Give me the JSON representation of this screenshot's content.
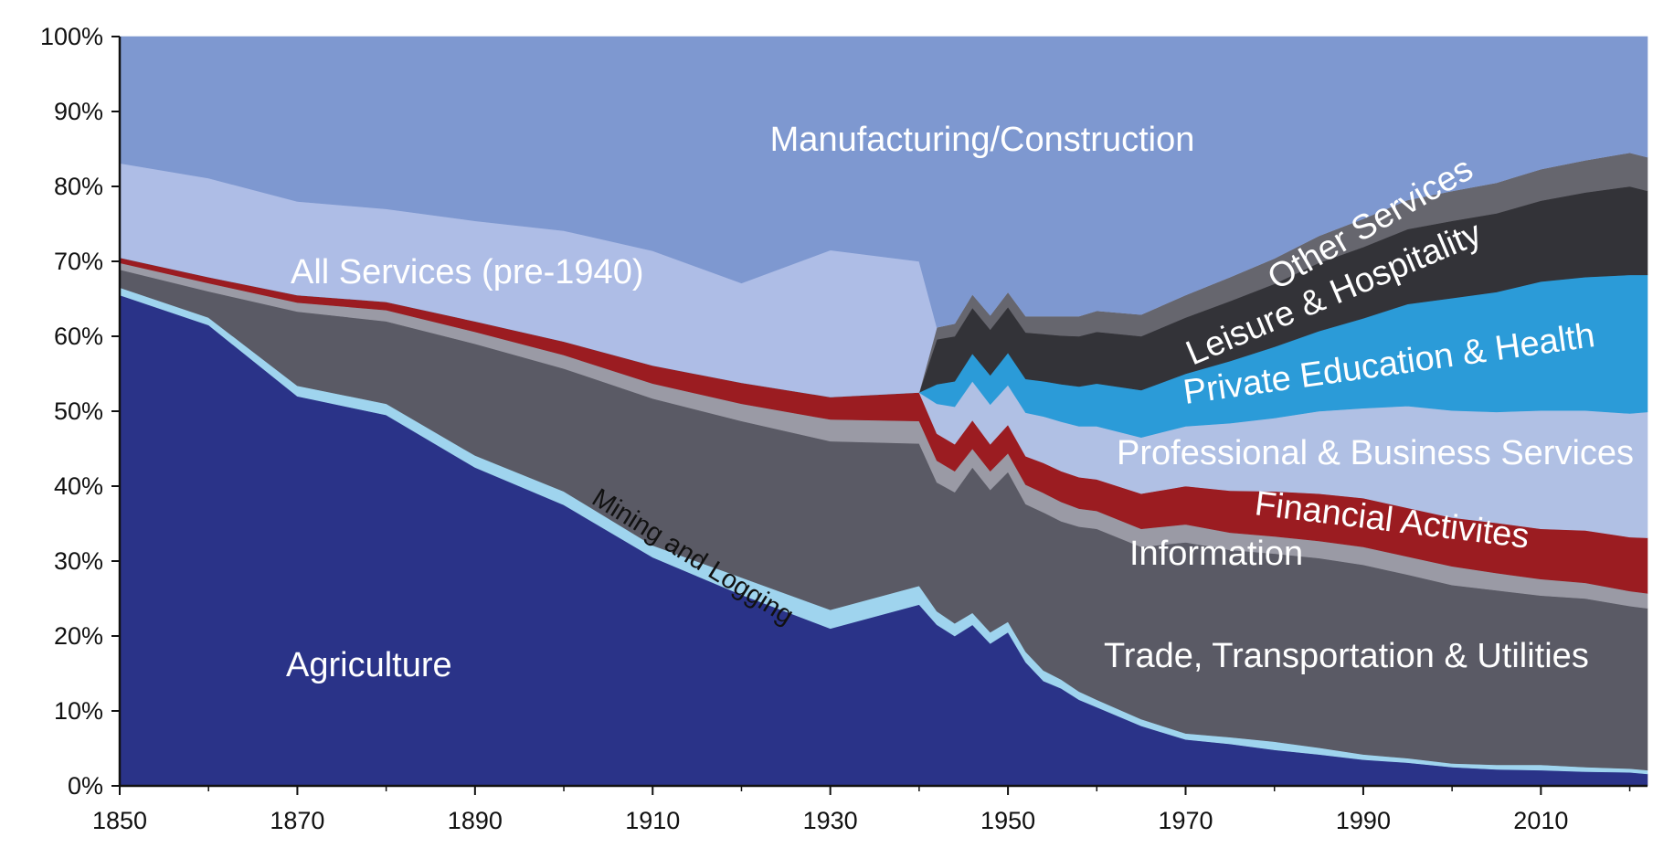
{
  "chart_data": {
    "type": "area",
    "stacked": true,
    "normalized": true,
    "title": "",
    "xlabel": "",
    "ylabel": "",
    "xlim": [
      1850,
      2022
    ],
    "ylim": [
      0,
      100
    ],
    "grid": false,
    "legend": "none",
    "x_ticks": [
      "1850",
      "1870",
      "1890",
      "1910",
      "1930",
      "1950",
      "1970",
      "1990",
      "2010"
    ],
    "y_ticks": [
      "0%",
      "10%",
      "20%",
      "30%",
      "40%",
      "50%",
      "60%",
      "70%",
      "80%",
      "90%",
      "100%"
    ],
    "x": [
      1850,
      1860,
      1870,
      1880,
      1890,
      1900,
      1910,
      1920,
      1930,
      1940,
      1942,
      1944,
      1946,
      1948,
      1950,
      1952,
      1954,
      1956,
      1958,
      1960,
      1965,
      1970,
      1975,
      1980,
      1985,
      1990,
      1995,
      2000,
      2005,
      2010,
      2015,
      2020,
      2022
    ],
    "series": [
      {
        "name": "Agriculture",
        "color": "#2a3388",
        "values": [
          65.5,
          61.5,
          52,
          49.5,
          42.5,
          37.5,
          30.5,
          25.5,
          21,
          24.2,
          21.5,
          20,
          21.5,
          19,
          20.5,
          16.5,
          14,
          13,
          11.5,
          10.5,
          8,
          6.2,
          5.6,
          4.8,
          4.2,
          3.5,
          3.1,
          2.5,
          2.2,
          2.1,
          1.9,
          1.8,
          1.6
        ]
      },
      {
        "name": "Mining and Logging",
        "color": "#9fd4ee",
        "values": [
          1,
          1,
          1.4,
          1.5,
          1.6,
          1.8,
          1.6,
          2.3,
          2.5,
          2.5,
          1.8,
          1.7,
          1.6,
          1.5,
          1.4,
          1.4,
          1.4,
          1.2,
          1.1,
          1,
          0.9,
          0.8,
          0.9,
          1.1,
          0.9,
          0.7,
          0.6,
          0.5,
          0.6,
          0.7,
          0.6,
          0.5,
          0.5
        ]
      },
      {
        "name": "Trade, Transportation & Utilities",
        "color": "#5a5a65",
        "values": [
          2.4,
          3.5,
          9.9,
          11,
          14.9,
          16.4,
          19.6,
          20.9,
          22.5,
          19,
          17.2,
          17.5,
          19.4,
          19,
          20,
          19.7,
          21.1,
          21.1,
          22,
          22.8,
          23,
          25.5,
          25,
          25.1,
          25.3,
          25.3,
          24.5,
          23.8,
          23.3,
          22.6,
          22.5,
          21.7,
          21.6
        ]
      },
      {
        "name": "Information",
        "color": "#9a9aa5",
        "values": [
          0.9,
          1.1,
          1.2,
          1.5,
          1.6,
          1.8,
          2,
          2.3,
          2.9,
          3,
          2.9,
          2.8,
          2.5,
          2.5,
          2.5,
          2.6,
          2.6,
          2.6,
          2.4,
          2.4,
          2.4,
          2.4,
          2.3,
          2.3,
          2.3,
          2.4,
          2.4,
          2.5,
          2.3,
          2.2,
          2.1,
          2,
          2
        ]
      },
      {
        "name": "Financial Activites",
        "color": "#9b1c21",
        "values": [
          0.7,
          0.8,
          1,
          1.1,
          1.4,
          1.8,
          2.4,
          2.8,
          3,
          3.8,
          3.6,
          3.6,
          3.8,
          3.6,
          3.8,
          3.8,
          4,
          4.1,
          4.2,
          4.2,
          4.7,
          5.1,
          5.6,
          6,
          6.3,
          6.5,
          6.5,
          6.5,
          6.7,
          6.7,
          7,
          7.2,
          7.4
        ]
      },
      {
        "name": "Professional & Business Services",
        "color": "#b0c0e4",
        "values": [
          0,
          0,
          0,
          0,
          0,
          0,
          0,
          0,
          0,
          0,
          4,
          5,
          5.2,
          5.3,
          5.3,
          5.8,
          6.2,
          6.6,
          6.8,
          7.1,
          7.5,
          8,
          9,
          9.8,
          11,
          12,
          13.6,
          14.3,
          14.8,
          15.8,
          16,
          16.5,
          16.8
        ]
      },
      {
        "name": "Private Education & Health",
        "color": "#2b9bd8",
        "values": [
          0,
          0,
          0,
          0,
          0,
          0,
          0,
          0,
          0,
          0,
          2.6,
          3.4,
          3.7,
          3.9,
          4.3,
          4.5,
          4.7,
          5,
          5.3,
          5.7,
          6.3,
          7,
          8.3,
          9.5,
          10.7,
          12,
          13.6,
          15,
          16,
          17.2,
          17.8,
          18.5,
          18.3
        ]
      },
      {
        "name": "Leisure & Hospitality",
        "color": "#333338",
        "values": [
          0,
          0,
          0,
          0,
          0,
          0,
          0,
          0,
          0,
          0,
          6,
          6,
          6.1,
          6.1,
          6.1,
          6.2,
          6.3,
          6.5,
          6.7,
          6.9,
          7.2,
          7.5,
          8,
          8.4,
          9.1,
          9.5,
          10,
          10.3,
          10.5,
          10.8,
          11.3,
          11.8,
          11.2
        ]
      },
      {
        "name": "Other Services",
        "color": "#66666e",
        "values": [
          0,
          0,
          0,
          0,
          0,
          0,
          0,
          0,
          0,
          0,
          1.6,
          1.7,
          1.8,
          1.9,
          2,
          2.2,
          2.4,
          2.6,
          2.7,
          2.8,
          2.9,
          3,
          3.2,
          3.4,
          3.6,
          3.8,
          3.9,
          4,
          4.1,
          4.2,
          4.3,
          4.5,
          4.5
        ]
      },
      {
        "name": "All Services (pre-1940)",
        "color": "#aebde6",
        "values": [
          12.6,
          13.2,
          12.5,
          12.4,
          13.4,
          14.8,
          15.3,
          13.3,
          19.6,
          17.5,
          0,
          0,
          0,
          0,
          0,
          0,
          0,
          0,
          0,
          0,
          0,
          0,
          0,
          0,
          0,
          0,
          0,
          0,
          0,
          0,
          0,
          0,
          0
        ]
      },
      {
        "name": "Manufacturing/Construction",
        "color": "#7e98d0",
        "values": [
          16.9,
          18.9,
          22,
          23,
          24.6,
          25.9,
          28.6,
          32.9,
          28.5,
          30.2,
          38.8,
          35.8,
          35.9,
          36.1,
          34.6,
          37.3,
          37.3,
          37.3,
          37.3,
          36.6,
          36.1,
          34.5,
          32.1,
          29.6,
          26.6,
          24.3,
          21.8,
          20.6,
          19.5,
          17.7,
          16.5,
          15.5,
          16.1
        ]
      }
    ],
    "annotations": [
      {
        "text": "Manufacturing/Construction",
        "color": "#ffffff"
      },
      {
        "text": "All Services (pre-1940)",
        "color": "#ffffff"
      },
      {
        "text": "Other Services",
        "color": "#ffffff"
      },
      {
        "text": "Leisure & Hospitality",
        "color": "#ffffff"
      },
      {
        "text": "Private Education & Health",
        "color": "#ffffff"
      },
      {
        "text": "Professional & Business Services",
        "color": "#ffffff"
      },
      {
        "text": "Financial Activites",
        "color": "#ffffff"
      },
      {
        "text": "Information",
        "color": "#ffffff"
      },
      {
        "text": "Mining and Logging",
        "color": "#111111"
      },
      {
        "text": "Trade, Transportation & Utilities",
        "color": "#ffffff"
      },
      {
        "text": "Agriculture",
        "color": "#ffffff"
      }
    ]
  }
}
